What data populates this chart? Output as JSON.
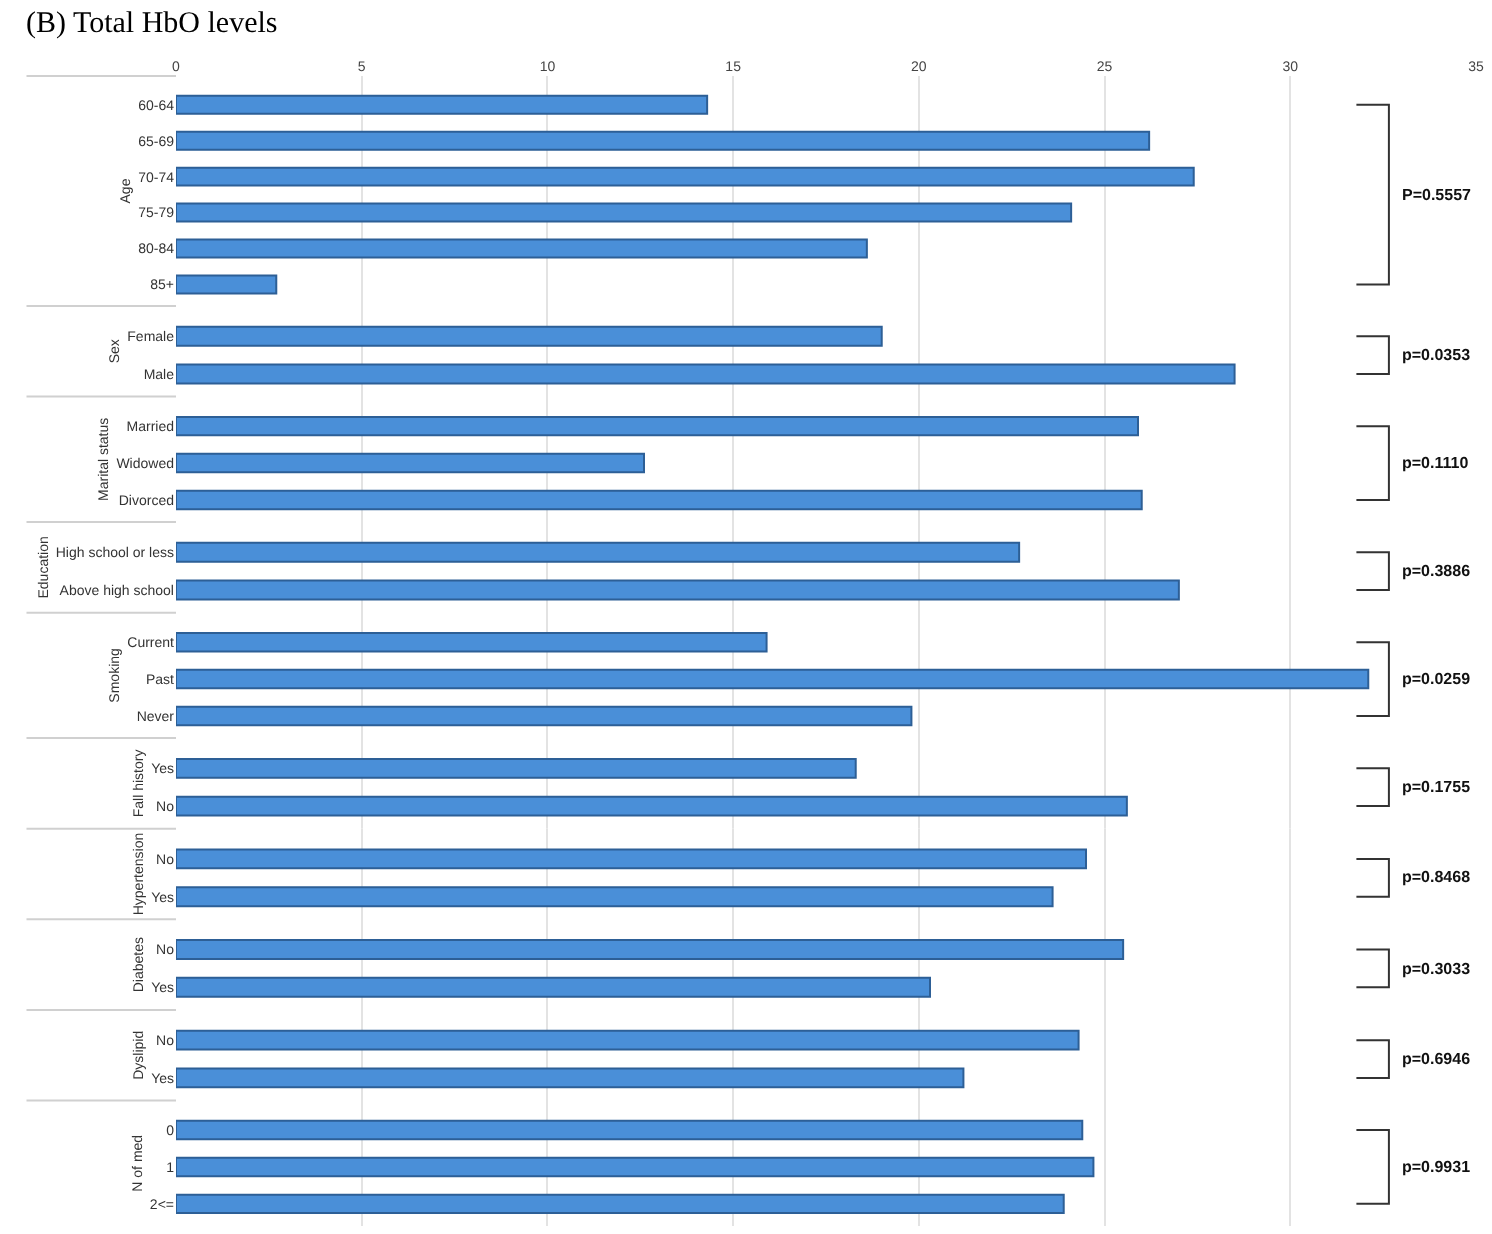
{
  "chart_data": [
    {
      "type": "bar",
      "orientation": "horizontal",
      "title": "(B) Total HbO levels",
      "ylabel": "Age",
      "categories": [
        "60-64",
        "65-69",
        "70-74",
        "75-79",
        "80-84",
        "85+"
      ],
      "values": [
        14.3,
        26.2,
        27.4,
        24.1,
        18.6,
        2.7
      ],
      "color": "#4a8fd8",
      "xlim": [
        0,
        35
      ],
      "xticks": [
        0,
        5,
        10,
        15,
        20,
        25,
        30,
        35
      ],
      "grid": "x",
      "annotations": [
        "P=0.5557"
      ]
    },
    {
      "type": "bar",
      "orientation": "horizontal",
      "ylabel": "Sex",
      "categories": [
        "Female",
        "Male"
      ],
      "values": [
        19.0,
        28.5
      ],
      "color": "#4a8fd8",
      "xlim": [
        0,
        35
      ],
      "xticks": [
        0,
        5,
        10,
        15,
        20,
        25,
        30,
        35
      ],
      "grid": "x",
      "tick_labels": "y",
      "annotations": [
        "p=0.0353"
      ]
    },
    {
      "type": "bar",
      "orientation": "horizontal",
      "ylabel": "Marital status",
      "categories": [
        "Married",
        "Widowed",
        "Divorced"
      ],
      "values": [
        25.9,
        12.6,
        26.0
      ],
      "color": "#4a8fd8",
      "xlim": [
        0,
        35
      ],
      "xticks": [
        0,
        5,
        10,
        15,
        20,
        25,
        30,
        35
      ],
      "grid": "x",
      "tick_labels": "y",
      "annotations": [
        "p=0.1110"
      ]
    },
    {
      "type": "bar",
      "orientation": "horizontal",
      "ylabel": "Education",
      "categories": [
        "High school or less",
        "Above high school"
      ],
      "values": [
        22.7,
        27.0
      ],
      "color": "#4a8fd8",
      "xlim": [
        0,
        35
      ],
      "xticks": [
        0,
        5,
        10,
        15,
        20,
        25,
        30,
        35
      ],
      "grid": "x",
      "tick_labels": "y",
      "annotations": [
        "p=0.3886"
      ]
    },
    {
      "type": "bar",
      "orientation": "horizontal",
      "ylabel": "Smoking",
      "categories": [
        "Current",
        "Past",
        "Never"
      ],
      "values": [
        15.9,
        32.1,
        19.8
      ],
      "color": "#4a8fd8",
      "xlim": [
        0,
        35
      ],
      "xticks": [
        0,
        5,
        10,
        15,
        20,
        25,
        30,
        35
      ],
      "grid": "x",
      "tick_labels": "y",
      "annotations": [
        "p=0.0259"
      ]
    },
    {
      "type": "bar",
      "orientation": "horizontal",
      "ylabel": "Fall history",
      "categories": [
        "Yes",
        "No"
      ],
      "values": [
        18.3,
        25.6
      ],
      "color": "#4a8fd8",
      "xlim": [
        0,
        35
      ],
      "xticks": [
        0,
        5,
        10,
        15,
        20,
        25,
        30,
        35
      ],
      "grid": "x",
      "tick_labels": "y",
      "annotations": [
        "p=0.1755"
      ]
    },
    {
      "type": "bar",
      "orientation": "horizontal",
      "ylabel": "Hypertension",
      "categories": [
        "No",
        "Yes"
      ],
      "values": [
        24.5,
        23.6
      ],
      "color": "#4a8fd8",
      "xlim": [
        0,
        35
      ],
      "xticks": [
        0,
        5,
        10,
        15,
        20,
        25,
        30,
        35
      ],
      "grid": "x",
      "tick_labels": "y",
      "annotations": [
        "p=0.8468"
      ]
    },
    {
      "type": "bar",
      "orientation": "horizontal",
      "ylabel": "Diabetes",
      "categories": [
        "No",
        "Yes"
      ],
      "values": [
        25.5,
        20.3
      ],
      "color": "#4a8fd8",
      "xlim": [
        0,
        35
      ],
      "xticks": [
        0,
        5,
        10,
        15,
        20,
        25,
        30,
        35
      ],
      "grid": "x",
      "tick_labels": "y",
      "annotations": [
        "p=0.3033"
      ]
    },
    {
      "type": "bar",
      "orientation": "horizontal",
      "ylabel": "Dyslipid",
      "categories": [
        "No",
        "Yes"
      ],
      "values": [
        24.3,
        21.2
      ],
      "color": "#4a8fd8",
      "xlim": [
        0,
        35
      ],
      "xticks": [
        0,
        5,
        10,
        15,
        20,
        25,
        30,
        35
      ],
      "grid": "x",
      "tick_labels": "y",
      "annotations": [
        "p=0.6946"
      ]
    },
    {
      "type": "bar",
      "orientation": "horizontal",
      "ylabel": "N of med",
      "categories": [
        "0",
        "1",
        "2<="
      ],
      "values": [
        24.4,
        24.7,
        23.9
      ],
      "color": "#4a8fd8",
      "xlim": [
        0,
        35
      ],
      "xticks": [
        0,
        5,
        10,
        15,
        20,
        25,
        30,
        35
      ],
      "grid": "x",
      "tick_labels": "y",
      "annotations": [
        "p=0.9931"
      ]
    }
  ]
}
